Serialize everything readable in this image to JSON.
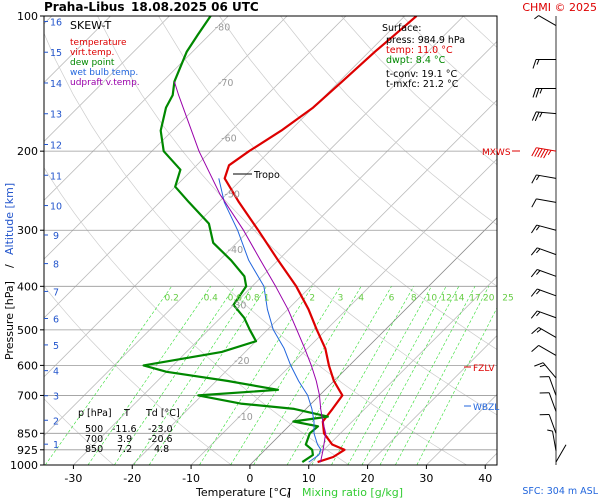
{
  "header": {
    "station": "Praha-Libus",
    "datetime": "18.08.2025 06 UTC",
    "credit": "CHMI © 2025"
  },
  "chart_data": {
    "type": "line",
    "title": "SKEW-T",
    "xlabel_temperature": "Temperature [°C]",
    "xlabel_slash": "/",
    "xlabel_mixing": "Mixing ratio [g/kg]",
    "ylabel_pressure": "Pressure [hPa]",
    "ylabel_slash": "/",
    "ylabel_altitude": "Altitude [km]",
    "x_ticks": [
      -30,
      -20,
      -10,
      0,
      10,
      20,
      30,
      40
    ],
    "xlim": [
      -35,
      42
    ],
    "p_ticks": [
      100,
      200,
      300,
      400,
      500,
      600,
      700,
      850,
      925,
      1000
    ],
    "alt_ticks": [
      1,
      2,
      3,
      4,
      5,
      6,
      7,
      8,
      9,
      10,
      11,
      12,
      13,
      14,
      15,
      16
    ],
    "isotherm_labels": [
      -80,
      -70,
      -60,
      -50,
      -40,
      -30,
      -20,
      -10
    ],
    "mixing_ratio_labels": [
      "0.2",
      "0.4",
      "0.6",
      "0.8",
      "1",
      "2",
      "3",
      "4",
      "6",
      "8",
      "10",
      "12",
      "14",
      "17",
      "20",
      "25"
    ],
    "legend": [
      {
        "label": "temperature",
        "color": "#dd0000"
      },
      {
        "label": "virt.temp.",
        "color": "#dd0000"
      },
      {
        "label": "dew point",
        "color": "#008800"
      },
      {
        "label": "wet bulb temp.",
        "color": "#2266dd"
      },
      {
        "label": "udpraft v.temp.",
        "color": "#9900aa"
      }
    ],
    "surface_box": {
      "title": "Surface:",
      "press": "press: 984.9 hPa",
      "temp": "temp: 11.0 °C",
      "dwpt": "dwpt: 8.4 °C",
      "tconv": "t-conv: 19.1 °C",
      "tmxfc": "t-mxfc: 21.2 °C"
    },
    "levels": [
      {
        "label": "MXWS",
        "p": 200,
        "color": "#dd0000"
      },
      {
        "label": "FZLV",
        "p": 615,
        "color": "#dd0000"
      },
      {
        "label": "WBZL",
        "p": 720,
        "color": "#2266dd"
      }
    ],
    "tropo_label": "Tropo",
    "table": {
      "headers": [
        "p [hPa]",
        "T",
        "Td [°C]"
      ],
      "rows": [
        [
          "500",
          "-11.6",
          "-23.0"
        ],
        [
          "700",
          "3.9",
          "-20.6"
        ],
        [
          "850",
          "7.2",
          "4.8"
        ]
      ]
    },
    "series": [
      {
        "name": "temperature",
        "color": "#dd0000",
        "points": [
          [
            985,
            11.0
          ],
          [
            960,
            12.8
          ],
          [
            925,
            13.5
          ],
          [
            900,
            10.5
          ],
          [
            850,
            7.2
          ],
          [
            800,
            5.0
          ],
          [
            750,
            4.5
          ],
          [
            700,
            3.9
          ],
          [
            650,
            0.0
          ],
          [
            600,
            -3.5
          ],
          [
            550,
            -7.0
          ],
          [
            500,
            -11.6
          ],
          [
            450,
            -16.5
          ],
          [
            400,
            -22.5
          ],
          [
            350,
            -30.0
          ],
          [
            300,
            -38.5
          ],
          [
            260,
            -46.5
          ],
          [
            230,
            -53.0
          ],
          [
            215,
            -54.5
          ],
          [
            200,
            -53.5
          ],
          [
            180,
            -51.5
          ],
          [
            160,
            -50.0
          ],
          [
            140,
            -49.5
          ],
          [
            120,
            -49.0
          ],
          [
            110,
            -48.5
          ],
          [
            100,
            -48.0
          ]
        ]
      },
      {
        "name": "dew point",
        "color": "#008800",
        "points": [
          [
            985,
            8.4
          ],
          [
            950,
            9.0
          ],
          [
            925,
            8.0
          ],
          [
            900,
            6.0
          ],
          [
            850,
            4.8
          ],
          [
            820,
            5.0
          ],
          [
            800,
            0.0
          ],
          [
            780,
            5.0
          ],
          [
            750,
            -2.0
          ],
          [
            730,
            -12.0
          ],
          [
            700,
            -20.6
          ],
          [
            680,
            -8.0
          ],
          [
            650,
            -18.0
          ],
          [
            620,
            -30.0
          ],
          [
            600,
            -35.0
          ],
          [
            560,
            -24.0
          ],
          [
            530,
            -20.0
          ],
          [
            500,
            -23.0
          ],
          [
            470,
            -26.0
          ],
          [
            440,
            -30.0
          ],
          [
            400,
            -31.0
          ],
          [
            380,
            -33.0
          ],
          [
            350,
            -38.0
          ],
          [
            320,
            -44.0
          ],
          [
            290,
            -48.0
          ],
          [
            260,
            -55.0
          ],
          [
            240,
            -60.0
          ],
          [
            220,
            -62.0
          ],
          [
            200,
            -68.0
          ],
          [
            180,
            -72.0
          ],
          [
            160,
            -75.0
          ],
          [
            150,
            -76.0
          ],
          [
            140,
            -78.0
          ],
          [
            120,
            -81.0
          ],
          [
            110,
            -82.0
          ],
          [
            100,
            -83.0
          ]
        ]
      },
      {
        "name": "wet bulb temp.",
        "color": "#2266dd",
        "points": [
          [
            985,
            9.5
          ],
          [
            950,
            10.0
          ],
          [
            925,
            9.5
          ],
          [
            900,
            8.0
          ],
          [
            850,
            5.5
          ],
          [
            800,
            3.5
          ],
          [
            750,
            1.0
          ],
          [
            700,
            -2.0
          ],
          [
            650,
            -6.0
          ],
          [
            600,
            -10.0
          ],
          [
            550,
            -14.0
          ],
          [
            500,
            -19.0
          ],
          [
            450,
            -23.5
          ],
          [
            400,
            -28.0
          ],
          [
            350,
            -35.0
          ],
          [
            300,
            -42.0
          ],
          [
            260,
            -49.0
          ],
          [
            230,
            -54.0
          ]
        ]
      },
      {
        "name": "udpraft v.temp.",
        "color": "#9900aa",
        "points": [
          [
            985,
            11.5
          ],
          [
            930,
            10.0
          ],
          [
            850,
            7.5
          ],
          [
            800,
            5.0
          ],
          [
            750,
            2.5
          ],
          [
            700,
            0.0
          ],
          [
            650,
            -3.0
          ],
          [
            600,
            -6.5
          ],
          [
            550,
            -10.5
          ],
          [
            500,
            -15.0
          ],
          [
            450,
            -20.0
          ],
          [
            400,
            -26.0
          ],
          [
            350,
            -33.0
          ],
          [
            300,
            -41.0
          ],
          [
            250,
            -51.0
          ],
          [
            200,
            -62.0
          ],
          [
            150,
            -75.0
          ],
          [
            140,
            -78.0
          ]
        ]
      }
    ],
    "wind_barbs": [
      {
        "p": 105,
        "dir": 300,
        "speed": 5
      },
      {
        "p": 125,
        "dir": 270,
        "speed": 15
      },
      {
        "p": 145,
        "dir": 270,
        "speed": 25
      },
      {
        "p": 165,
        "dir": 275,
        "speed": 25
      },
      {
        "p": 200,
        "dir": 280,
        "speed": 55
      },
      {
        "p": 230,
        "dir": 280,
        "speed": 15
      },
      {
        "p": 260,
        "dir": 280,
        "speed": 10
      },
      {
        "p": 300,
        "dir": 285,
        "speed": 15
      },
      {
        "p": 340,
        "dir": 290,
        "speed": 15
      },
      {
        "p": 380,
        "dir": 290,
        "speed": 15
      },
      {
        "p": 420,
        "dir": 290,
        "speed": 15
      },
      {
        "p": 470,
        "dir": 290,
        "speed": 15
      },
      {
        "p": 520,
        "dir": 300,
        "speed": 15
      },
      {
        "p": 570,
        "dir": 300,
        "speed": 10
      },
      {
        "p": 640,
        "dir": 320,
        "speed": 15
      },
      {
        "p": 700,
        "dir": 340,
        "speed": 10
      },
      {
        "p": 760,
        "dir": 340,
        "speed": 10
      },
      {
        "p": 850,
        "dir": 340,
        "speed": 10
      },
      {
        "p": 930,
        "dir": 350,
        "speed": 5
      },
      {
        "p": 985,
        "dir": 30,
        "speed": 0
      }
    ],
    "sfc_label": "SFC: 304 m ASL"
  }
}
